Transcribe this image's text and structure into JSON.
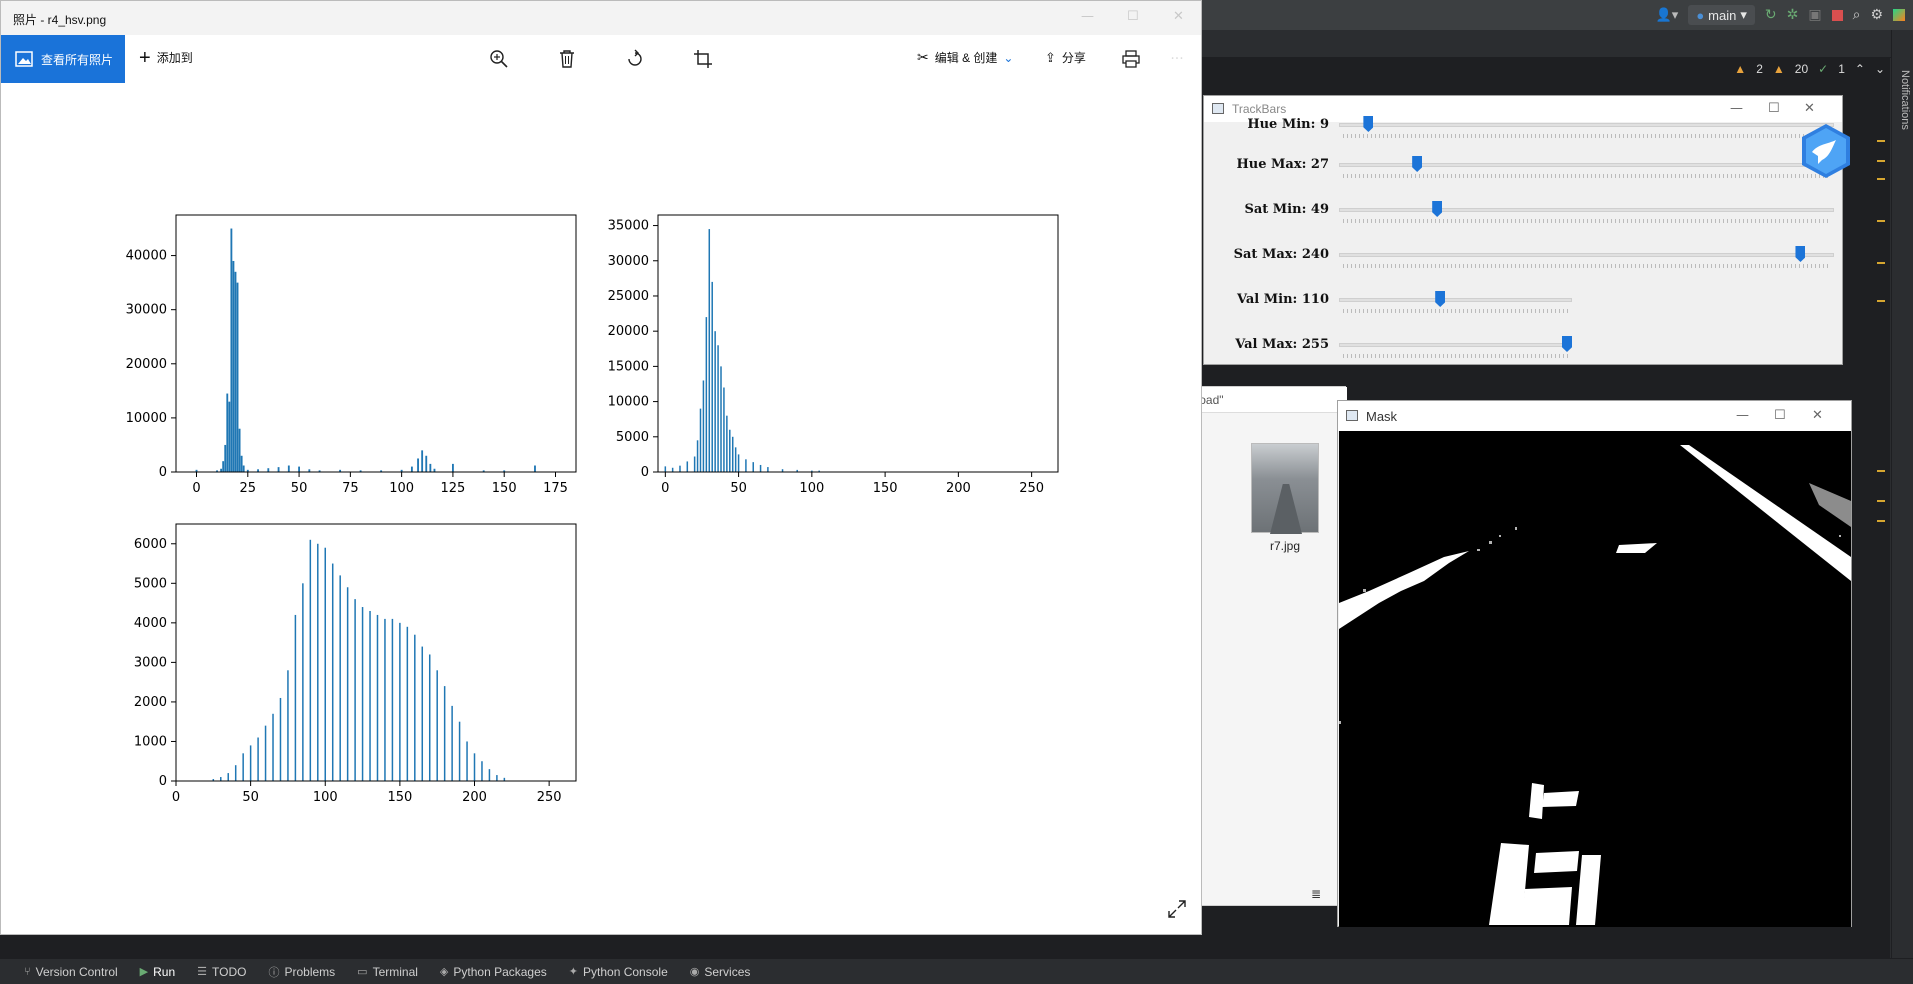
{
  "ide": {
    "branch": "main",
    "inspections": {
      "warnings": "2",
      "weak_warnings": "20",
      "ok": "1"
    },
    "notifications_label": "Notifications",
    "statusbar": [
      {
        "label": "Version Control",
        "icon": "git-branch-icon"
      },
      {
        "label": "Run",
        "icon": "run-play-icon",
        "active": true
      },
      {
        "label": "TODO",
        "icon": "todo-list-icon"
      },
      {
        "label": "Problems",
        "icon": "info-circle-icon"
      },
      {
        "label": "Terminal",
        "icon": "terminal-icon"
      },
      {
        "label": "Python Packages",
        "icon": "layers-icon"
      },
      {
        "label": "Python Console",
        "icon": "python-icon"
      },
      {
        "label": "Services",
        "icon": "services-icon"
      }
    ]
  },
  "explorer": {
    "search_text": "\"road\"",
    "file_name": "r7.jpg"
  },
  "photos": {
    "title": "照片 - r4_hsv.png",
    "view_all": "查看所有照片",
    "add_to": "添加到",
    "edit_create": "编辑 & 创建",
    "share": "分享",
    "more": "···"
  },
  "chart_data": [
    {
      "type": "bar",
      "title": "",
      "xlabel": "",
      "ylabel": "",
      "xlim": [
        -10,
        185
      ],
      "ylim": [
        0,
        47500
      ],
      "xticks": [
        0,
        25,
        50,
        75,
        100,
        125,
        150,
        175
      ],
      "yticks": [
        0,
        10000,
        20000,
        30000,
        40000
      ],
      "x": [
        0,
        10,
        12,
        13,
        14,
        15,
        16,
        17,
        18,
        19,
        20,
        21,
        22,
        23,
        25,
        30,
        35,
        40,
        45,
        50,
        55,
        60,
        70,
        80,
        90,
        100,
        105,
        108,
        110,
        112,
        114,
        116,
        125,
        140,
        150,
        165
      ],
      "values": [
        400,
        300,
        600,
        2000,
        5000,
        14500,
        13000,
        45000,
        39000,
        37000,
        35000,
        8000,
        3000,
        1200,
        400,
        500,
        700,
        900,
        1200,
        1000,
        500,
        300,
        400,
        300,
        300,
        400,
        1000,
        2500,
        4000,
        3000,
        1500,
        600,
        1500,
        300,
        300,
        1200
      ]
    },
    {
      "type": "bar",
      "title": "",
      "xlabel": "",
      "ylabel": "",
      "xlim": [
        -5,
        268
      ],
      "ylim": [
        0,
        36500
      ],
      "xticks": [
        0,
        50,
        100,
        150,
        200,
        250
      ],
      "yticks": [
        0,
        5000,
        10000,
        15000,
        20000,
        25000,
        30000,
        35000
      ],
      "x": [
        0,
        5,
        10,
        15,
        20,
        22,
        24,
        26,
        28,
        30,
        32,
        34,
        36,
        38,
        40,
        42,
        44,
        46,
        48,
        50,
        55,
        60,
        65,
        70,
        80,
        90,
        100,
        105
      ],
      "values": [
        800,
        600,
        900,
        1500,
        2200,
        4500,
        9000,
        13000,
        22000,
        34500,
        27000,
        20000,
        18000,
        15000,
        12000,
        8000,
        6000,
        5000,
        3500,
        2500,
        1800,
        1400,
        1000,
        700,
        400,
        300,
        200,
        200
      ]
    },
    {
      "type": "bar",
      "title": "",
      "xlabel": "",
      "ylabel": "",
      "xlim": [
        0,
        268
      ],
      "ylim": [
        0,
        6500
      ],
      "xticks": [
        0,
        50,
        100,
        150,
        200,
        250
      ],
      "yticks": [
        0,
        1000,
        2000,
        3000,
        4000,
        5000,
        6000
      ],
      "x": [
        25,
        30,
        35,
        40,
        45,
        50,
        55,
        60,
        65,
        70,
        75,
        80,
        85,
        90,
        95,
        100,
        105,
        110,
        115,
        120,
        125,
        130,
        135,
        140,
        145,
        150,
        155,
        160,
        165,
        170,
        175,
        180,
        185,
        190,
        195,
        200,
        205,
        210,
        215,
        220
      ],
      "values": [
        50,
        100,
        200,
        400,
        700,
        900,
        1100,
        1400,
        1700,
        2100,
        2800,
        4200,
        5000,
        6100,
        6000,
        5900,
        5500,
        5200,
        4900,
        4600,
        4400,
        4300,
        4200,
        4100,
        4100,
        4000,
        3900,
        3700,
        3400,
        3200,
        2800,
        2400,
        1900,
        1500,
        1000,
        700,
        500,
        300,
        150,
        80
      ]
    }
  ],
  "trackbars": {
    "title": "TrackBars",
    "sliders": [
      {
        "label": "Hue Min: 9",
        "value": 9,
        "max": 179
      },
      {
        "label": "Hue Max: 27",
        "value": 27,
        "max": 179
      },
      {
        "label": "Sat Min: 49",
        "value": 49,
        "max": 255
      },
      {
        "label": "Sat Max: 240",
        "value": 240,
        "max": 255
      },
      {
        "label": "Val Min: 110",
        "value": 110,
        "max": 255
      },
      {
        "label": "Val Max: 255",
        "value": 255,
        "max": 255
      }
    ]
  },
  "mask": {
    "title": "Mask"
  }
}
